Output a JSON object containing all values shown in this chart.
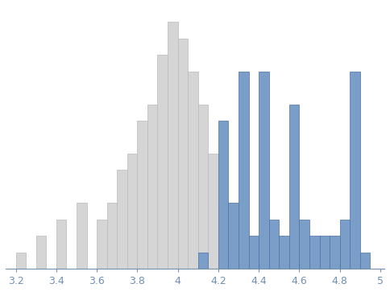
{
  "gray_lefts": [
    3.2,
    3.3,
    3.4,
    3.5,
    3.6,
    3.65,
    3.7,
    3.75,
    3.8,
    3.85,
    3.9,
    3.95,
    4.0,
    4.05,
    4.1,
    4.15,
    4.2
  ],
  "gray_counts": [
    1,
    2,
    3,
    4,
    3,
    4,
    6,
    7,
    9,
    10,
    13,
    15,
    14,
    12,
    10,
    7,
    4
  ],
  "blue_lefts": [
    4.1,
    4.2,
    4.25,
    4.3,
    4.35,
    4.4,
    4.45,
    4.5,
    4.55,
    4.6,
    4.65,
    4.7,
    4.75,
    4.8,
    4.85,
    4.9
  ],
  "blue_counts": [
    1,
    9,
    4,
    12,
    2,
    12,
    3,
    2,
    10,
    3,
    2,
    2,
    2,
    3,
    12,
    1
  ],
  "gray_face": "#d5d5d5",
  "gray_edge": "#bbbbbb",
  "blue_face": "#7b9ec8",
  "blue_edge": "#4a70a8",
  "xlim": [
    3.15,
    5.02
  ],
  "ylim_max": 16,
  "xticks": [
    3.2,
    3.4,
    3.6,
    3.8,
    4.0,
    4.2,
    4.4,
    4.6,
    4.8,
    5.0
  ],
  "xtick_labels": [
    "3.2",
    "3.4",
    "3.6",
    "3.8",
    "4",
    "4.2",
    "4.4",
    "4.6",
    "4.8",
    "5"
  ],
  "tick_color": "#7090b0",
  "spine_color": "#7090b0",
  "bin_width": 0.05,
  "fig_bg": "#ffffff"
}
